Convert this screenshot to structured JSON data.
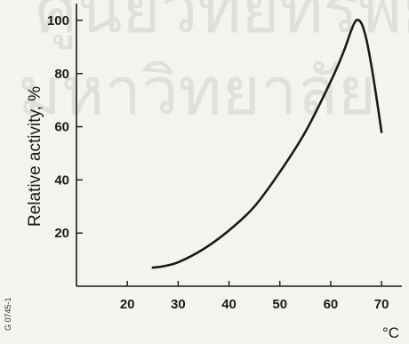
{
  "chart_data": {
    "type": "line",
    "title": "",
    "xlabel": "°C",
    "ylabel": "Relative activity, %",
    "xlim": [
      10,
      74
    ],
    "ylim": [
      0,
      105
    ],
    "x_ticks": [
      20,
      30,
      40,
      50,
      60,
      70
    ],
    "y_ticks": [
      20,
      40,
      60,
      80,
      100
    ],
    "grid": false,
    "legend": "none",
    "series": [
      {
        "color": "#1a1a1a",
        "x": [
          25,
          27,
          30,
          35,
          40,
          45,
          50,
          55,
          60,
          62.5,
          64,
          65,
          66,
          67,
          68,
          69,
          70
        ],
        "y": [
          7,
          7.5,
          9,
          14,
          21,
          30,
          43,
          58,
          77,
          88,
          96,
          100,
          99,
          93,
          83,
          71,
          58
        ]
      }
    ]
  },
  "figure_code": "G 0745-1",
  "watermark_text": "ศูนย์วิทยทรัพยากร มหาวิทยาลัย"
}
